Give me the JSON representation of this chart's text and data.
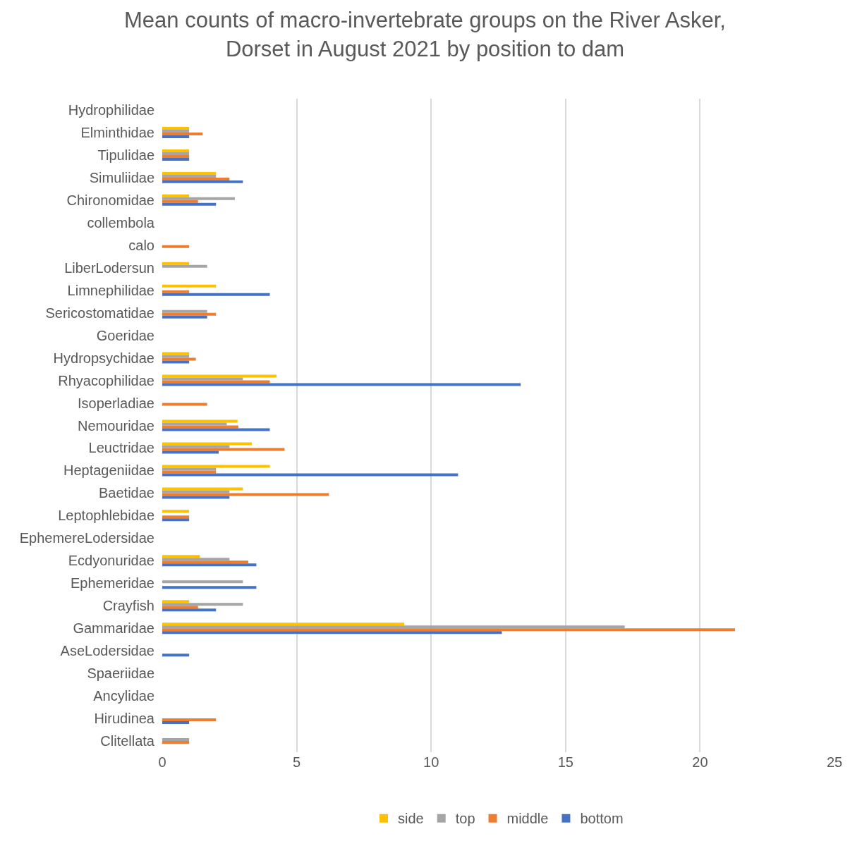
{
  "chart_data": {
    "type": "bar",
    "orientation": "horizontal",
    "title": "Mean counts of macro-invertebrate groups on the River Asker, Dorset in August 2021 by position to dam",
    "categories": [
      "Hydrophilidae",
      "Elminthidae",
      "Tipulidae",
      "Simuliidae",
      "Chironomidae",
      "collembola",
      "calo",
      "LiberLodersun",
      "Limnephilidae",
      "Sericostomatidae",
      "Goeridae",
      "Hydropsychidae",
      "Rhyacophilidae",
      "Isoperladiae",
      "Nemouridae",
      "Leuctridae",
      "Heptageniidae",
      "Baetidae",
      "Leptophlebidae",
      "EphemereLodersidae",
      "Ecdyonuridae",
      "Ephemeridae",
      "Crayfish",
      "Gammaridae",
      "AseLodersidae",
      "Spaeriidae",
      "Ancylidae",
      "Hirudinea",
      "Clitellata"
    ],
    "series": [
      {
        "name": "side",
        "color": "#ffc000",
        "values": [
          null,
          1,
          1,
          2,
          1,
          null,
          null,
          1,
          2,
          null,
          null,
          1,
          4.25,
          null,
          2.8,
          3.33,
          4,
          3,
          1,
          null,
          1.4,
          null,
          1,
          9,
          null,
          null,
          null,
          null,
          null
        ]
      },
      {
        "name": "top",
        "color": "#a5a5a5",
        "values": [
          null,
          1,
          1,
          2,
          2.7,
          null,
          null,
          1.67,
          null,
          1.67,
          null,
          1,
          3,
          null,
          2.4,
          2.5,
          2,
          2.5,
          null,
          null,
          2.5,
          3,
          3,
          17.2,
          null,
          null,
          null,
          null,
          1
        ]
      },
      {
        "name": "middle",
        "color": "#ed7d31",
        "values": [
          null,
          1.5,
          1,
          2.5,
          1.33,
          null,
          1,
          null,
          1,
          2,
          null,
          1.25,
          4,
          1.67,
          2.83,
          4.55,
          2,
          6.2,
          1,
          null,
          3.2,
          null,
          1.33,
          21.3,
          null,
          null,
          null,
          2,
          1
        ]
      },
      {
        "name": "bottom",
        "color": "#4472c4",
        "values": [
          null,
          1,
          1,
          3,
          2,
          null,
          null,
          null,
          4,
          1.67,
          null,
          1,
          13.33,
          null,
          4,
          2.1,
          11,
          2.5,
          1,
          null,
          3.5,
          3.5,
          2,
          12.63,
          1,
          null,
          null,
          1,
          null
        ]
      }
    ],
    "xlim": [
      0,
      25
    ],
    "xticks": [
      0,
      5,
      10,
      15,
      20,
      25
    ],
    "grid": "x",
    "legend": "bottom"
  }
}
